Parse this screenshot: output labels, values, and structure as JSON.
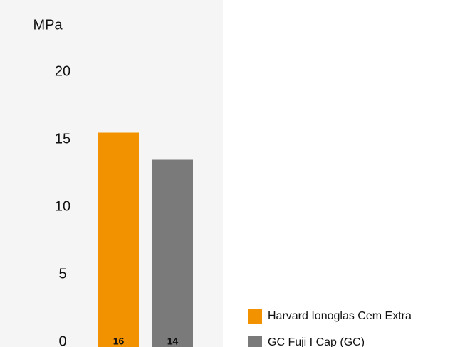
{
  "chart_data": {
    "type": "bar",
    "y_label": "MPa",
    "categories": [
      null
    ],
    "series": [
      {
        "name": "Harvard Ionoglas Cem Extra",
        "color": "#f39200",
        "values": [
          15.5
        ],
        "value_labels": [
          "16"
        ]
      },
      {
        "name": "GC Fuji I Cap (GC)",
        "color": "#7a7a7a",
        "values": [
          13.5
        ],
        "value_labels": [
          "14"
        ]
      }
    ],
    "ylim": [
      0,
      20
    ],
    "yticks": [
      0,
      5,
      10,
      15,
      20
    ],
    "grid": false,
    "legend": "bottom-right"
  }
}
